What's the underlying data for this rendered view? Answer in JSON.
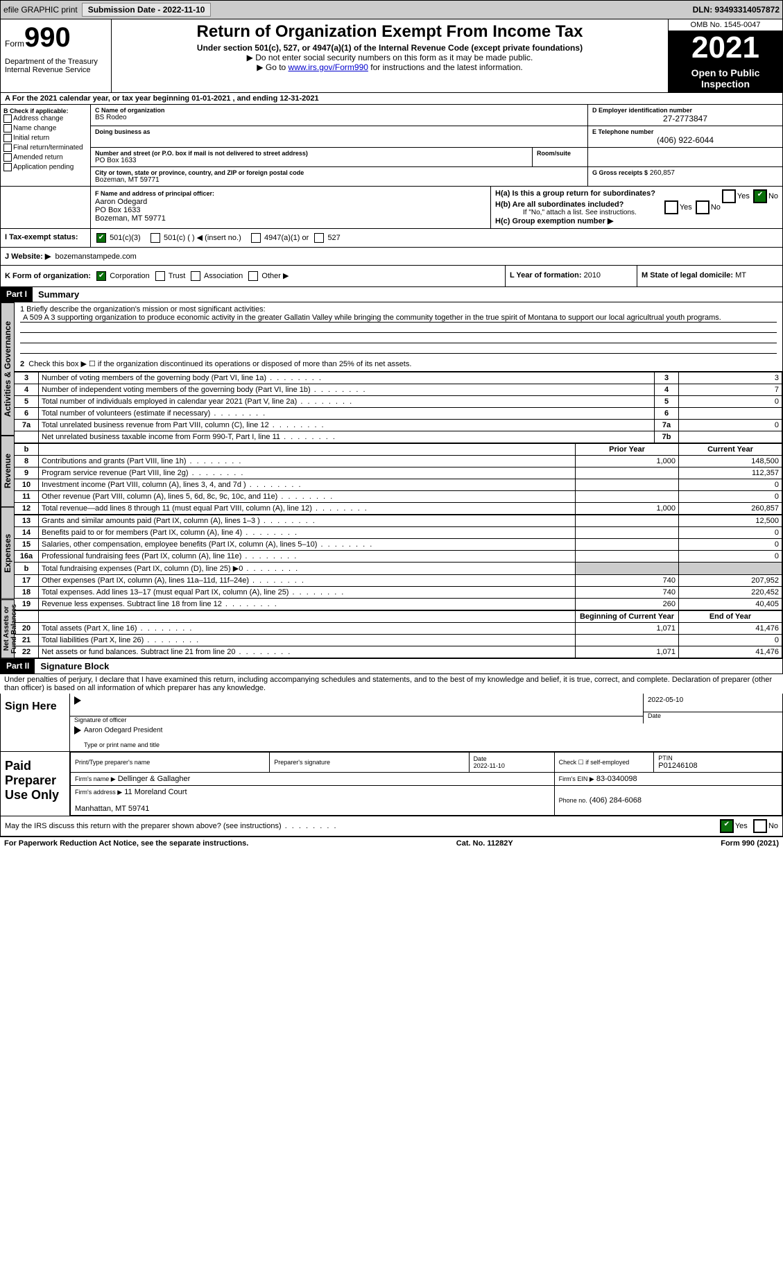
{
  "topbar": {
    "efile": "efile GRAPHIC print",
    "subdate_label": "Submission Date - 2022-11-10",
    "dln": "DLN: 93493314057872"
  },
  "header": {
    "form_label": "Form",
    "form_num": "990",
    "dept": "Department of the Treasury\nInternal Revenue Service",
    "title": "Return of Organization Exempt From Income Tax",
    "sub": "Under section 501(c), 527, or 4947(a)(1) of the Internal Revenue Code (except private foundations)",
    "note1": "▶ Do not enter social security numbers on this form as it may be made public.",
    "note2_pre": "▶ Go to ",
    "note2_link": "www.irs.gov/Form990",
    "note2_post": " for instructions and the latest information.",
    "omb": "OMB No. 1545-0047",
    "year": "2021",
    "open": "Open to Public Inspection"
  },
  "rowA": "A For the 2021 calendar year, or tax year beginning 01-01-2021   , and ending 12-31-2021",
  "colB": {
    "label": "B Check if applicable:",
    "items": [
      "Address change",
      "Name change",
      "Initial return",
      "Final return/terminated",
      "Amended return",
      "Application pending"
    ]
  },
  "boxC_label": "C Name of organization",
  "org_name": "BS Rodeo",
  "dba_label": "Doing business as",
  "street_label": "Number and street (or P.O. box if mail is not delivered to street address)",
  "street": "PO Box 1633",
  "room_label": "Room/suite",
  "city_label": "City or town, state or province, country, and ZIP or foreign postal code",
  "city": "Bozeman, MT  59771",
  "boxD_label": "D Employer identification number",
  "ein": "27-2773847",
  "boxE_label": "E Telephone number",
  "phone": "(406) 922-6044",
  "boxG_label": "G Gross receipts $",
  "gross": "260,857",
  "boxF_label": "F Name and address of principal officer:",
  "officer": "Aaron Odegard\nPO Box 1633\nBozeman, MT  59771",
  "Ha": "H(a)  Is this a group return for subordinates?",
  "Hb": "H(b)  Are all subordinates included?",
  "Hb_note": "If \"No,\" attach a list. See instructions.",
  "Hc": "H(c)  Group exemption number ▶",
  "yes": "Yes",
  "no": "No",
  "rowI_label": "I   Tax-exempt status:",
  "i501c3": "501(c)(3)",
  "i501c": "501(c) (  ) ◀ (insert no.)",
  "i4947": "4947(a)(1) or",
  "i527": "527",
  "rowJ_label": "J   Website: ▶",
  "website": "bozemanstampede.com",
  "rowK_label": "K Form of organization:",
  "k_corp": "Corporation",
  "k_trust": "Trust",
  "k_assoc": "Association",
  "k_other": "Other ▶",
  "rowL_label": "L Year of formation:",
  "rowL_val": "2010",
  "rowM_label": "M State of legal domicile:",
  "rowM_val": "MT",
  "part1": {
    "label": "Part I",
    "title": "Summary"
  },
  "mission_label": "1   Briefly describe the organization's mission or most significant activities:",
  "mission": "A 509 A 3 supporting organization to produce economic activity in the greater Gallatin Valley while bringing the community together in the true spirit of Montana to support our local agricultrual youth programs.",
  "line2": "Check this box ▶ ☐ if the organization discontinued its operations or disposed of more than 25% of its net assets.",
  "vtab1": "Activities & Governance",
  "vtab2": "Revenue",
  "vtab3": "Expenses",
  "vtab4": "Net Assets or Fund Balances",
  "gov_rows": [
    {
      "n": "3",
      "t": "Number of voting members of the governing body (Part VI, line 1a)",
      "b": "3",
      "v": "3"
    },
    {
      "n": "4",
      "t": "Number of independent voting members of the governing body (Part VI, line 1b)",
      "b": "4",
      "v": "7"
    },
    {
      "n": "5",
      "t": "Total number of individuals employed in calendar year 2021 (Part V, line 2a)",
      "b": "5",
      "v": "0"
    },
    {
      "n": "6",
      "t": "Total number of volunteers (estimate if necessary)",
      "b": "6",
      "v": ""
    },
    {
      "n": "7a",
      "t": "Total unrelated business revenue from Part VIII, column (C), line 12",
      "b": "7a",
      "v": "0"
    },
    {
      "n": "",
      "t": "Net unrelated business taxable income from Form 990-T, Part I, line 11",
      "b": "7b",
      "v": ""
    }
  ],
  "col_prior": "Prior Year",
  "col_curr": "Current Year",
  "col_beg": "Beginning of Current Year",
  "col_end": "End of Year",
  "rev_rows": [
    {
      "n": "8",
      "t": "Contributions and grants (Part VIII, line 1h)",
      "p": "1,000",
      "c": "148,500"
    },
    {
      "n": "9",
      "t": "Program service revenue (Part VIII, line 2g)",
      "p": "",
      "c": "112,357"
    },
    {
      "n": "10",
      "t": "Investment income (Part VIII, column (A), lines 3, 4, and 7d )",
      "p": "",
      "c": "0"
    },
    {
      "n": "11",
      "t": "Other revenue (Part VIII, column (A), lines 5, 6d, 8c, 9c, 10c, and 11e)",
      "p": "",
      "c": "0"
    },
    {
      "n": "12",
      "t": "Total revenue—add lines 8 through 11 (must equal Part VIII, column (A), line 12)",
      "p": "1,000",
      "c": "260,857"
    }
  ],
  "exp_rows": [
    {
      "n": "13",
      "t": "Grants and similar amounts paid (Part IX, column (A), lines 1–3 )",
      "p": "",
      "c": "12,500"
    },
    {
      "n": "14",
      "t": "Benefits paid to or for members (Part IX, column (A), line 4)",
      "p": "",
      "c": "0"
    },
    {
      "n": "15",
      "t": "Salaries, other compensation, employee benefits (Part IX, column (A), lines 5–10)",
      "p": "",
      "c": "0"
    },
    {
      "n": "16a",
      "t": "Professional fundraising fees (Part IX, column (A), line 11e)",
      "p": "",
      "c": "0"
    },
    {
      "n": "b",
      "t": "Total fundraising expenses (Part IX, column (D), line 25) ▶0",
      "p": "GRAY",
      "c": "GRAY"
    },
    {
      "n": "17",
      "t": "Other expenses (Part IX, column (A), lines 11a–11d, 11f–24e)",
      "p": "740",
      "c": "207,952"
    },
    {
      "n": "18",
      "t": "Total expenses. Add lines 13–17 (must equal Part IX, column (A), line 25)",
      "p": "740",
      "c": "220,452"
    },
    {
      "n": "19",
      "t": "Revenue less expenses. Subtract line 18 from line 12",
      "p": "260",
      "c": "40,405"
    }
  ],
  "net_rows": [
    {
      "n": "20",
      "t": "Total assets (Part X, line 16)",
      "p": "1,071",
      "c": "41,476"
    },
    {
      "n": "21",
      "t": "Total liabilities (Part X, line 26)",
      "p": "",
      "c": "0"
    },
    {
      "n": "22",
      "t": "Net assets or fund balances. Subtract line 21 from line 20",
      "p": "1,071",
      "c": "41,476"
    }
  ],
  "part2": {
    "label": "Part II",
    "title": "Signature Block"
  },
  "penalty": "Under penalties of perjury, I declare that I have examined this return, including accompanying schedules and statements, and to the best of my knowledge and belief, it is true, correct, and complete. Declaration of preparer (other than officer) is based on all information of which preparer has any knowledge.",
  "sign_here": "Sign Here",
  "sig_date": "2022-05-10",
  "sig_officer_lbl": "Signature of officer",
  "sig_date_lbl": "Date",
  "sig_name": "Aaron Odegard  President",
  "sig_name_lbl": "Type or print name and title",
  "paid": "Paid Preparer Use Only",
  "prep_name_lbl": "Print/Type preparer's name",
  "prep_sig_lbl": "Preparer's signature",
  "prep_date_lbl": "Date",
  "prep_date": "2022-11-10",
  "prep_check_lbl": "Check ☐ if self-employed",
  "ptin_lbl": "PTIN",
  "ptin": "P01246108",
  "firm_name_lbl": "Firm's name   ▶",
  "firm_name": "Dellinger & Gallagher",
  "firm_ein_lbl": "Firm's EIN ▶",
  "firm_ein": "83-0340098",
  "firm_addr_lbl": "Firm's address ▶",
  "firm_addr": "11 Moreland Court\n\nManhattan, MT  59741",
  "firm_phone_lbl": "Phone no.",
  "firm_phone": "(406) 284-6068",
  "may_irs": "May the IRS discuss this return with the preparer shown above? (see instructions)",
  "footer_left": "For Paperwork Reduction Act Notice, see the separate instructions.",
  "footer_mid": "Cat. No. 11282Y",
  "footer_right": "Form 990 (2021)"
}
